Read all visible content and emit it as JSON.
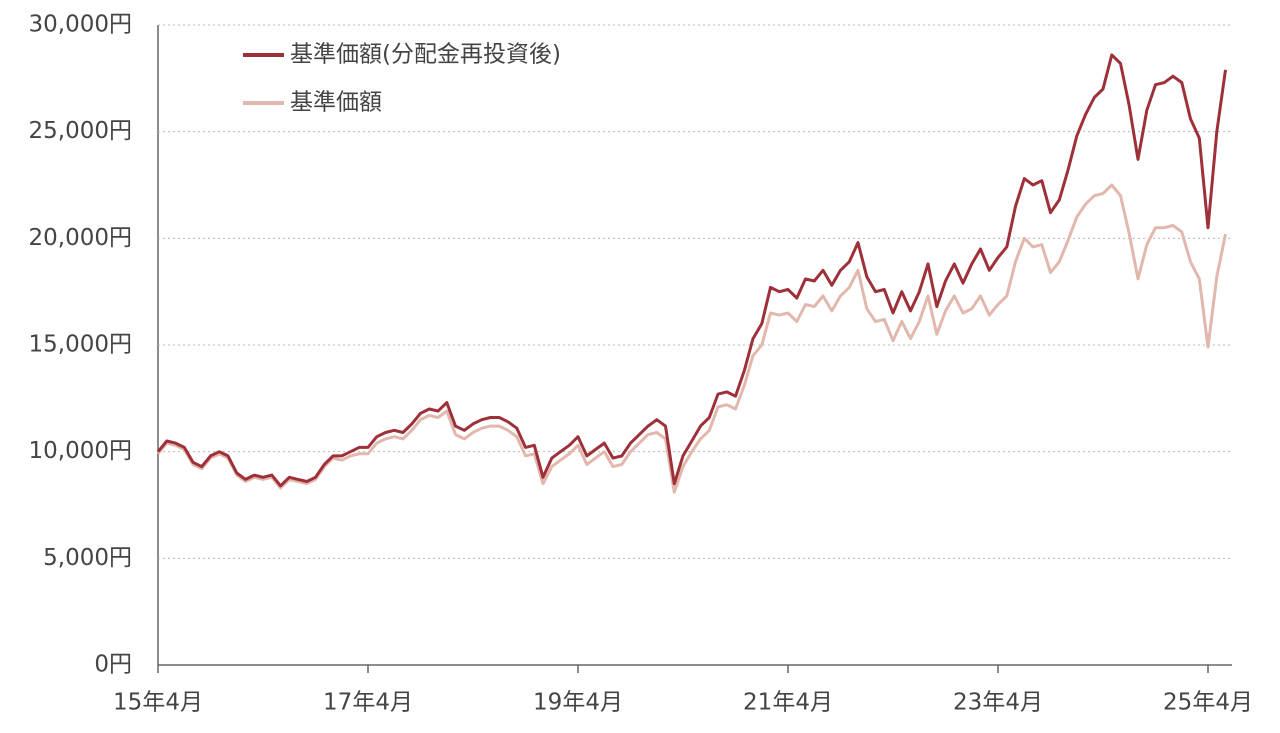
{
  "chart_data": {
    "type": "line",
    "categories": [
      "15年4月",
      null,
      null,
      null,
      null,
      null,
      null,
      null,
      null,
      null,
      null,
      null,
      null,
      null,
      null,
      null,
      null,
      null,
      null,
      null,
      null,
      null,
      null,
      null,
      "17年4月",
      null,
      null,
      null,
      null,
      null,
      null,
      null,
      null,
      null,
      null,
      null,
      null,
      null,
      null,
      null,
      null,
      null,
      null,
      null,
      null,
      null,
      null,
      null,
      "19年4月",
      null,
      null,
      null,
      null,
      null,
      null,
      null,
      null,
      null,
      null,
      null,
      null,
      null,
      null,
      null,
      null,
      null,
      null,
      null,
      null,
      null,
      null,
      null,
      "21年4月",
      null,
      null,
      null,
      null,
      null,
      null,
      null,
      null,
      null,
      null,
      null,
      null,
      null,
      null,
      null,
      null,
      null,
      null,
      null,
      null,
      null,
      null,
      null,
      "23年4月",
      null,
      null,
      null,
      null,
      null,
      null,
      null,
      null,
      null,
      null,
      null,
      null,
      null,
      null,
      null,
      null,
      null,
      null,
      null,
      null,
      null,
      null,
      null,
      "25年4月",
      null,
      null
    ],
    "series": [
      {
        "name": "基準価額(分配金再投資後)",
        "color": "#9e3039",
        "values": [
          10000,
          10500,
          10400,
          10200,
          9500,
          9300,
          9800,
          10000,
          9800,
          9000,
          8700,
          8900,
          8800,
          8900,
          8400,
          8800,
          8700,
          8600,
          8800,
          9400,
          9800,
          9800,
          10000,
          10200,
          10200,
          10700,
          10900,
          11000,
          10900,
          11300,
          11800,
          12000,
          11900,
          12300,
          11200,
          11000,
          11300,
          11500,
          11600,
          11600,
          11400,
          11100,
          10200,
          10300,
          8800,
          9700,
          10000,
          10300,
          10700,
          9800,
          10100,
          10400,
          9700,
          9800,
          10400,
          10800,
          11200,
          11500,
          11200,
          8500,
          9800,
          10500,
          11200,
          11600,
          12700,
          12800,
          12600,
          13800,
          15300,
          16000,
          17700,
          17500,
          17600,
          17200,
          18100,
          18000,
          18500,
          17800,
          18500,
          18900,
          19800,
          18200,
          17500,
          17600,
          16500,
          17500,
          16600,
          17500,
          18800,
          16800,
          18000,
          18800,
          17900,
          18800,
          19500,
          18500,
          19100,
          19600,
          21500,
          22800,
          22500,
          22700,
          21200,
          21800,
          23200,
          24800,
          25800,
          26600,
          27000,
          28600,
          28200,
          26200,
          23700,
          26000,
          27200,
          27300,
          27600,
          27300,
          25600,
          24700,
          20500,
          25000,
          27900
        ]
      },
      {
        "name": "基準価額",
        "color": "#e2b7ad",
        "values": [
          9900,
          10400,
          10300,
          10100,
          9400,
          9200,
          9700,
          9900,
          9700,
          8900,
          8600,
          8800,
          8700,
          8800,
          8300,
          8700,
          8600,
          8500,
          8700,
          9300,
          9700,
          9600,
          9800,
          9900,
          9900,
          10400,
          10600,
          10700,
          10600,
          11000,
          11500,
          11700,
          11600,
          11900,
          10800,
          10600,
          10900,
          11100,
          11200,
          11200,
          11000,
          10700,
          9800,
          9900,
          8500,
          9300,
          9600,
          9900,
          10300,
          9400,
          9700,
          10000,
          9300,
          9400,
          10000,
          10400,
          10800,
          10900,
          10600,
          8100,
          9300,
          10000,
          10600,
          11000,
          12100,
          12200,
          12000,
          13100,
          14500,
          15000,
          16500,
          16400,
          16500,
          16100,
          16900,
          16800,
          17300,
          16600,
          17300,
          17700,
          18500,
          16700,
          16100,
          16200,
          15200,
          16100,
          15300,
          16100,
          17300,
          15500,
          16600,
          17300,
          16500,
          16700,
          17300,
          16400,
          16900,
          17300,
          18900,
          20000,
          19600,
          19700,
          18400,
          18900,
          19900,
          21000,
          21600,
          22000,
          22100,
          22500,
          22000,
          20200,
          18100,
          19700,
          20500,
          20500,
          20600,
          20300,
          18900,
          18100,
          14900,
          18200,
          20200
        ]
      }
    ],
    "ylim": [
      0,
      30000
    ],
    "yticks": [
      {
        "value": 0,
        "label": "0円"
      },
      {
        "value": 5000,
        "label": "5,000円"
      },
      {
        "value": 10000,
        "label": "10,000円"
      },
      {
        "value": 15000,
        "label": "15,000円"
      },
      {
        "value": 20000,
        "label": "20,000円"
      },
      {
        "value": 25000,
        "label": "25,000円"
      },
      {
        "value": 30000,
        "label": "30,000円"
      }
    ],
    "grid": true,
    "legend": "top-left"
  }
}
